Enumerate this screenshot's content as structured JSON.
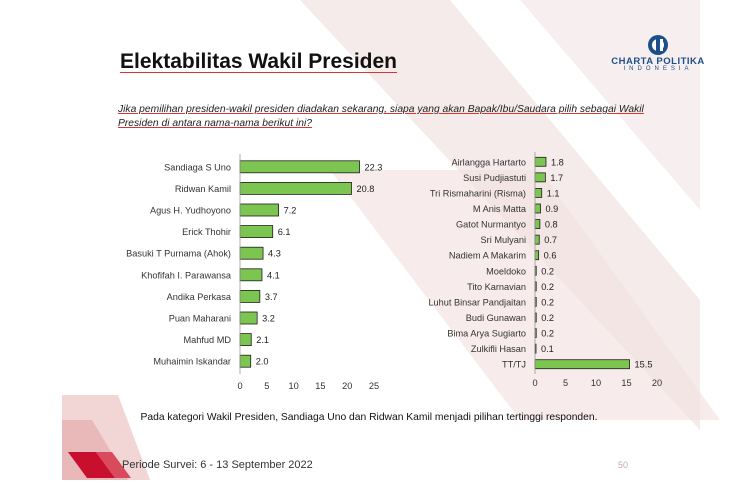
{
  "slide": {
    "title": "Elektabilitas Wakil Presiden",
    "question": "Jika pemilihan presiden-wakil presiden diadakan sekarang, siapa yang akan Bapak/Ibu/Saudara pilih sebagai Wakil Presiden di antara nama-nama berikut ini?",
    "footnote": "Pada kategori Wakil Presiden, Sandiaga Uno dan Ridwan Kamil menjadi pilihan tertinggi responden.",
    "period": "Periode Survei: 6 - 13 September 2022",
    "page_number": "50",
    "logo": {
      "name": "CHARTA POLITIKA",
      "sub": "INDONESIA"
    }
  },
  "colors": {
    "bar": "#7dc551",
    "bar_edge": "#1e1e1e",
    "accent": "#c8102e",
    "logo": "#1c4f8a"
  },
  "chart_data": [
    {
      "type": "bar",
      "orientation": "horizontal",
      "categories": [
        "Sandiaga S Uno",
        "Ridwan Kamil",
        "Agus H. Yudhoyono",
        "Erick Thohir",
        "Basuki T Purnama (Ahok)",
        "Khofifah I. Parawansa",
        "Andika Perkasa",
        "Puan Maharani",
        "Mahfud MD",
        "Muhaimin Iskandar"
      ],
      "values": [
        22.3,
        20.8,
        7.2,
        6.1,
        4.3,
        4.1,
        3.7,
        3.2,
        2.1,
        2.0
      ],
      "value_labels": [
        "22.3",
        "20.8",
        "7.2",
        "6.1",
        "4.3",
        "4.1",
        "3.7",
        "3.2",
        "2.1",
        "2.0"
      ],
      "xlim": [
        0,
        25
      ],
      "ticks": [
        "0",
        "5",
        "10",
        "15",
        "20",
        "25"
      ],
      "grid": false
    },
    {
      "type": "bar",
      "orientation": "horizontal",
      "categories": [
        "Airlangga Hartarto",
        "Susi Pudjiastuti",
        "Tri Rismaharini (Risma)",
        "M Anis Matta",
        "Gatot Nurmantyo",
        "Sri Mulyani",
        "Nadiem A Makarim",
        "Moeldoko",
        "Tito Karnavian",
        "Luhut Binsar Pandjaitan",
        "Budi Gunawan",
        "Bima Arya Sugiarto",
        "Zulkifli Hasan",
        "TT/TJ"
      ],
      "values": [
        1.8,
        1.7,
        1.1,
        0.9,
        0.8,
        0.7,
        0.6,
        0.2,
        0.2,
        0.2,
        0.2,
        0.2,
        0.1,
        15.5
      ],
      "value_labels": [
        "1.8",
        "1.7",
        "1.1",
        "0.9",
        "0.8",
        "0.7",
        "0.6",
        "0.2",
        "0.2",
        "0.2",
        "0.2",
        "0.2",
        "0.1",
        "15.5"
      ],
      "xlim": [
        0,
        20
      ],
      "ticks": [
        "0",
        "5",
        "10",
        "15",
        "20"
      ],
      "grid": false
    }
  ]
}
